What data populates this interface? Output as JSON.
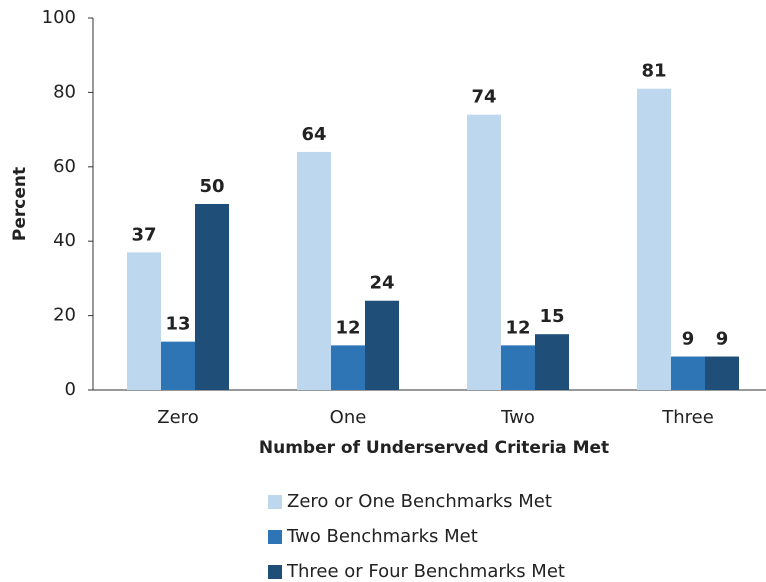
{
  "chart_data": {
    "type": "bar",
    "xlabel": "Number of Underserved Criteria Met",
    "ylabel": "Percent",
    "categories": [
      "Zero",
      "One",
      "Two",
      "Three"
    ],
    "series": [
      {
        "name": "Zero or One Benchmarks Met",
        "color": "#bdd7ee",
        "values": [
          37,
          64,
          74,
          81
        ]
      },
      {
        "name": "Two Benchmarks Met",
        "color": "#2e75b6",
        "values": [
          13,
          12,
          12,
          9
        ]
      },
      {
        "name": "Three or Four Benchmarks Met",
        "color": "#1f4e79",
        "values": [
          50,
          24,
          15,
          9
        ]
      }
    ],
    "ylim": [
      0,
      100
    ],
    "yticks": [
      0,
      20,
      40,
      60,
      80,
      100
    ],
    "grid": false,
    "legend": "bottom"
  }
}
